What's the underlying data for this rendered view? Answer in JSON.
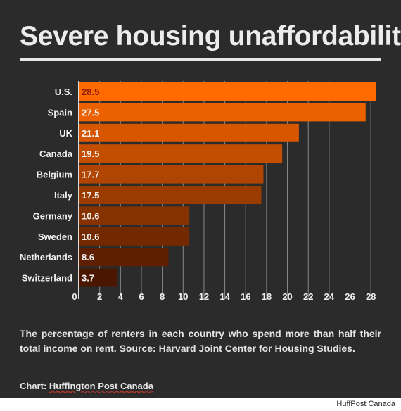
{
  "title": "Severe housing unaffordability",
  "chart_data": {
    "type": "bar",
    "orientation": "horizontal",
    "title": "Severe housing unaffordability",
    "categories": [
      "U.S.",
      "Spain",
      "UK",
      "Canada",
      "Belgium",
      "Italy",
      "Germany",
      "Sweden",
      "Netherlands",
      "Switzerland"
    ],
    "values": [
      28.5,
      27.5,
      21.1,
      19.5,
      17.7,
      17.5,
      10.6,
      10.6,
      8.6,
      3.7
    ],
    "value_labels": [
      "28.5",
      "27.5",
      "21.1",
      "19.5",
      "17.7",
      "17.5",
      "10.6",
      "10.6",
      "8.6",
      "3.7"
    ],
    "xlim": [
      0,
      29
    ],
    "x_ticks": [
      0,
      2,
      4,
      6,
      8,
      10,
      12,
      14,
      16,
      18,
      20,
      22,
      24,
      26,
      28
    ],
    "xlabel": "",
    "ylabel": "",
    "grid": "vertical",
    "legend": "none",
    "colors": {
      "bar_start": "#ff6a00",
      "bar_end": "#4a1600",
      "grid": "#8a8a8a",
      "text": "#f0f0f0",
      "top_value_text": "#8b1a00"
    }
  },
  "note": "The percentage of renters in each country who spend more than half their total income on rent. Source: Harvard Joint Center for Housing Studies.",
  "credit_prefix": "Chart: ",
  "credit_name": "Huffington Post Canada",
  "source_tag": "HuffPost Canada"
}
